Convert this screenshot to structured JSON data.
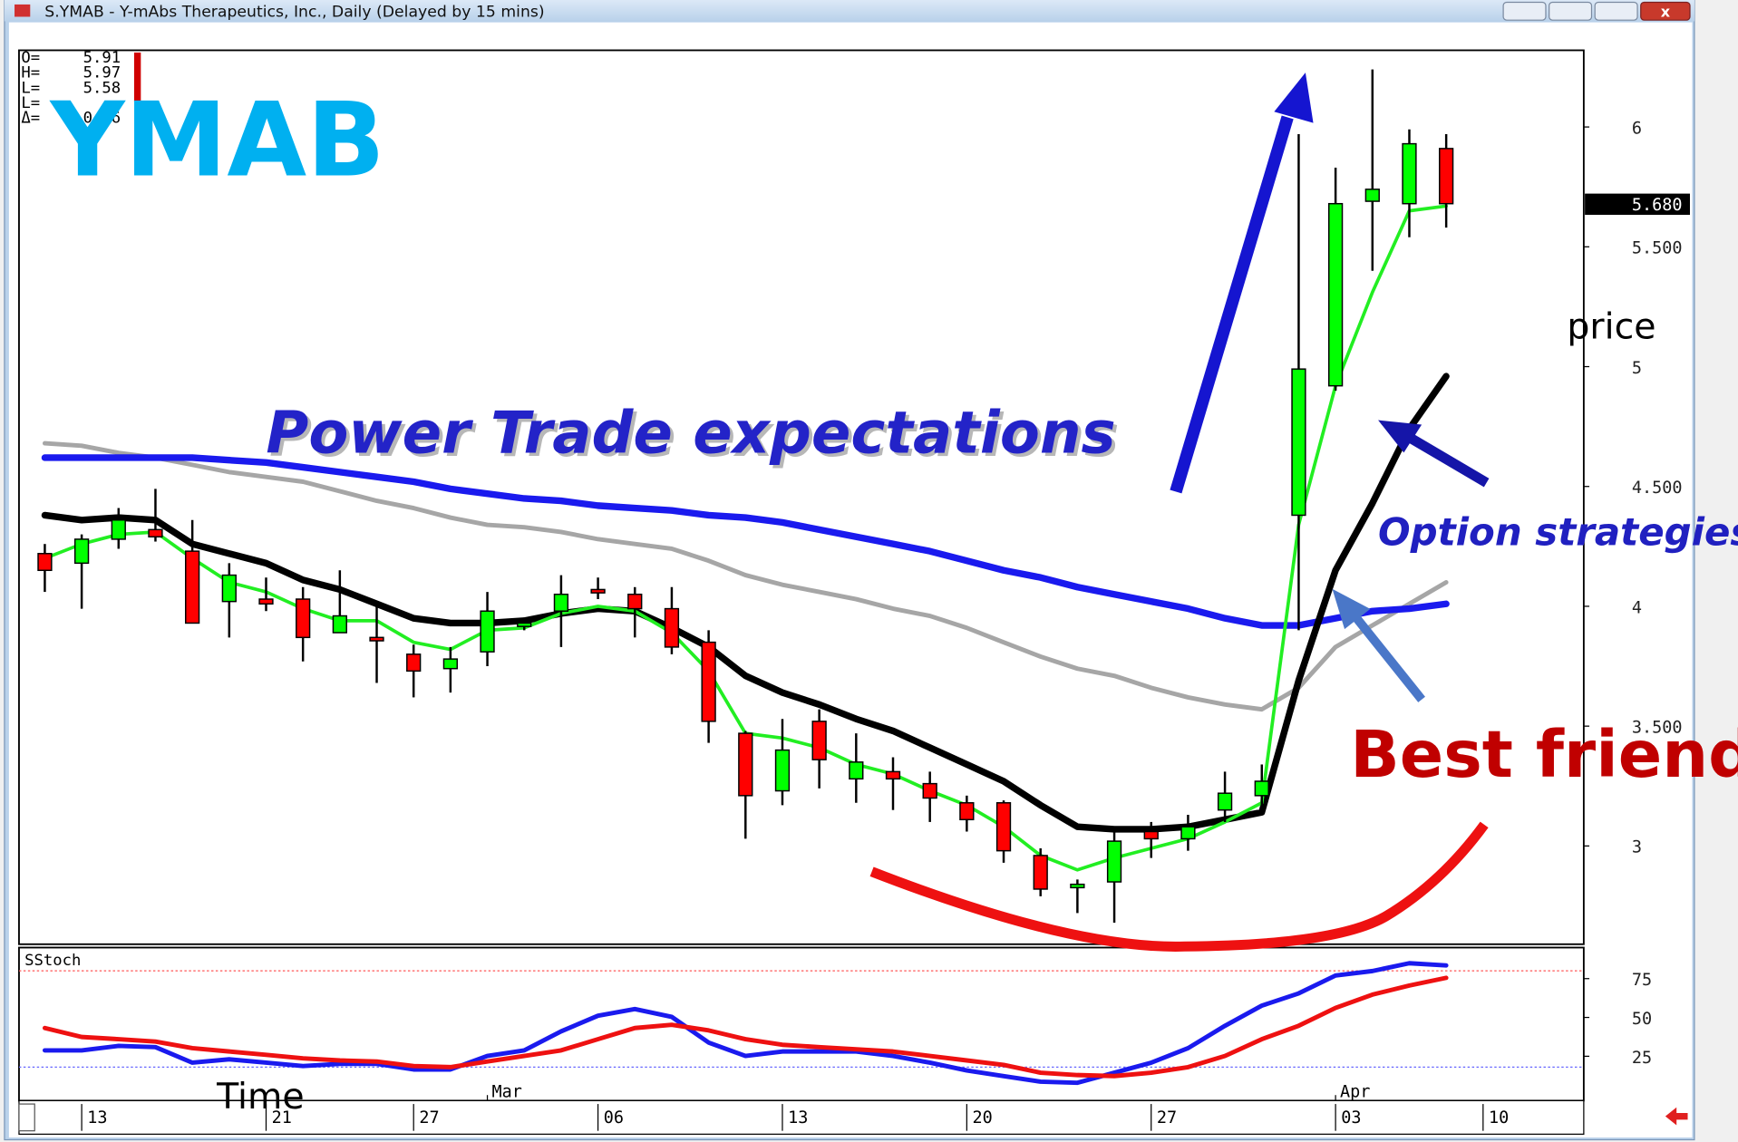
{
  "window_title": "S.YMAB - Y-mAbs Therapeutics, Inc., Daily (Delayed by 15 mins)",
  "ohlc_panel": [
    {
      "label": "O=",
      "value": "5.91"
    },
    {
      "label": "H=",
      "value": "5.97"
    },
    {
      "label": "L=",
      "value": "5.58"
    },
    {
      "label": "L="
    },
    {
      "label": "Δ=",
      "value": "-0.26"
    }
  ],
  "chart_data": [
    {
      "type": "candlestick",
      "annotations": [
        "YMAB",
        "Power Trade expectations",
        "Option strategies",
        "Best friend",
        "price",
        "Time"
      ],
      "x": [
        0,
        1,
        2,
        3,
        4,
        5,
        6,
        7,
        8,
        9,
        10,
        11,
        12,
        13,
        14,
        15,
        16,
        17,
        18,
        19,
        20,
        21,
        22,
        23,
        24,
        25,
        26,
        27,
        28,
        29,
        30,
        31,
        32,
        33,
        34,
        35,
        36,
        37,
        38
      ],
      "open": [
        4.22,
        4.18,
        4.28,
        4.32,
        4.23,
        4.02,
        4.03,
        4.03,
        3.89,
        3.87,
        3.8,
        3.74,
        3.81,
        3.92,
        3.98,
        4.07,
        4.05,
        3.99,
        3.85,
        3.47,
        3.23,
        3.52,
        3.28,
        3.31,
        3.26,
        3.18,
        3.18,
        2.96,
        2.83,
        2.85,
        3.06,
        3.03,
        3.15,
        3.21,
        4.38,
        4.92,
        5.69,
        5.68,
        5.91
      ],
      "high": [
        4.26,
        4.3,
        4.41,
        4.49,
        4.36,
        4.18,
        4.12,
        4.08,
        4.15,
        4.01,
        3.84,
        3.83,
        4.06,
        3.95,
        4.13,
        4.12,
        4.08,
        4.08,
        3.9,
        3.48,
        3.53,
        3.57,
        3.47,
        3.37,
        3.31,
        3.21,
        3.19,
        2.99,
        2.86,
        3.07,
        3.1,
        3.13,
        3.31,
        3.34,
        5.97,
        5.83,
        6.24,
        5.99,
        5.97
      ],
      "low": [
        4.06,
        3.99,
        4.24,
        4.27,
        3.93,
        3.87,
        3.98,
        3.77,
        3.89,
        3.68,
        3.62,
        3.64,
        3.75,
        3.9,
        3.83,
        4.03,
        3.87,
        3.8,
        3.43,
        3.03,
        3.17,
        3.24,
        3.18,
        3.15,
        3.1,
        3.06,
        2.93,
        2.79,
        2.72,
        2.68,
        2.95,
        2.98,
        3.1,
        3.14,
        3.9,
        4.9,
        5.4,
        5.54,
        5.58
      ],
      "close": [
        4.15,
        4.28,
        4.36,
        4.29,
        3.93,
        4.13,
        4.01,
        3.87,
        3.96,
        3.86,
        3.73,
        3.78,
        3.98,
        3.93,
        4.05,
        4.06,
        3.99,
        3.83,
        3.52,
        3.21,
        3.4,
        3.36,
        3.35,
        3.28,
        3.2,
        3.11,
        2.98,
        2.82,
        2.84,
        3.02,
        3.03,
        3.08,
        3.22,
        3.27,
        4.99,
        5.68,
        5.74,
        5.93,
        5.68
      ],
      "up_color": "#00ff00",
      "down_color": "#ff0000",
      "series": [
        {
          "color": "#a6a6a6",
          "width": 4,
          "values": [
            4.68,
            4.67,
            4.64,
            4.62,
            4.59,
            4.56,
            4.54,
            4.52,
            4.48,
            4.44,
            4.41,
            4.37,
            4.34,
            4.33,
            4.31,
            4.28,
            4.26,
            4.24,
            4.19,
            4.13,
            4.09,
            4.06,
            4.03,
            3.99,
            3.96,
            3.91,
            3.85,
            3.79,
            3.74,
            3.71,
            3.66,
            3.62,
            3.59,
            3.57,
            3.66,
            3.83,
            3.92,
            4.01,
            4.1
          ]
        },
        {
          "color": "#1a1aee",
          "width": 6,
          "values": [
            4.62,
            4.62,
            4.62,
            4.62,
            4.62,
            4.61,
            4.6,
            4.58,
            4.56,
            4.54,
            4.52,
            4.49,
            4.47,
            4.45,
            4.44,
            4.42,
            4.41,
            4.4,
            4.38,
            4.37,
            4.35,
            4.32,
            4.29,
            4.26,
            4.23,
            4.19,
            4.15,
            4.12,
            4.08,
            4.05,
            4.02,
            3.99,
            3.95,
            3.92,
            3.92,
            3.95,
            3.98,
            3.99,
            4.01
          ]
        },
        {
          "color": "#000000",
          "width": 6,
          "values": [
            4.38,
            4.36,
            4.37,
            4.36,
            4.26,
            4.22,
            4.18,
            4.11,
            4.07,
            4.01,
            3.95,
            3.93,
            3.93,
            3.94,
            3.97,
            3.99,
            3.98,
            3.91,
            3.83,
            3.71,
            3.64,
            3.59,
            3.53,
            3.48,
            3.41,
            3.34,
            3.27,
            3.17,
            3.08,
            3.07,
            3.07,
            3.08,
            3.11,
            3.14,
            3.69,
            4.15,
            4.43,
            4.74,
            4.96
          ]
        },
        {
          "color": "#22ee22",
          "width": 3,
          "values": [
            4.2,
            4.26,
            4.3,
            4.31,
            4.2,
            4.1,
            4.06,
            3.99,
            3.94,
            3.94,
            3.85,
            3.82,
            3.9,
            3.91,
            3.97,
            4.0,
            3.98,
            3.89,
            3.73,
            3.47,
            3.45,
            3.41,
            3.34,
            3.3,
            3.23,
            3.17,
            3.08,
            2.96,
            2.9,
            2.95,
            2.99,
            3.03,
            3.1,
            3.18,
            4.34,
            4.92,
            5.31,
            5.65,
            5.67
          ]
        }
      ],
      "xlim": [
        -0.7,
        41.73
      ],
      "ylim": [
        2.59,
        6.32
      ],
      "yticks": [
        3,
        {
          "value": 3.5,
          "label": "3.500"
        },
        4,
        {
          "value": 4.5,
          "label": "4.500"
        },
        5,
        {
          "value": 5.5,
          "label": "5.500"
        },
        6
      ],
      "xticks": [
        {
          "value": 1,
          "label": "13"
        },
        {
          "value": 6,
          "label": "21"
        },
        {
          "value": 10,
          "label": "27"
        },
        {
          "value": 15,
          "label": "06"
        },
        {
          "value": 20,
          "label": "13"
        },
        {
          "value": 25,
          "label": "20"
        },
        {
          "value": 30,
          "label": "27"
        },
        {
          "value": 35,
          "label": "03"
        },
        {
          "value": 39,
          "label": "10"
        }
      ],
      "month_ticks": [
        {
          "value": 12,
          "label": "Mar"
        },
        {
          "value": 35,
          "label": "Apr"
        }
      ],
      "last_price": {
        "value": 5.68,
        "label": "5.680"
      }
    },
    {
      "type": "line",
      "title": "SStoch",
      "x": [
        0,
        1,
        2,
        3,
        4,
        5,
        6,
        7,
        8,
        9,
        10,
        11,
        12,
        13,
        14,
        15,
        16,
        17,
        18,
        19,
        20,
        21,
        22,
        23,
        24,
        25,
        26,
        27,
        28,
        29,
        30,
        31,
        32,
        33,
        34,
        35,
        36,
        37,
        38
      ],
      "series": [
        {
          "color": "#1a1aee",
          "width": 4,
          "values": [
            28.8,
            28.8,
            31.7,
            30.9,
            20.9,
            23.0,
            20.9,
            18.7,
            20.1,
            20.1,
            16.5,
            16.5,
            25.2,
            28.8,
            41.0,
            51.1,
            55.4,
            50.4,
            33.8,
            25.2,
            28.1,
            28.1,
            28.1,
            25.2,
            20.9,
            15.8,
            12.2,
            8.6,
            7.9,
            14.4,
            20.9,
            30.2,
            44.6,
            57.6,
            65.5,
            77.0,
            79.9,
            84.9,
            83.5
          ]
        },
        {
          "color": "#ee1111",
          "width": 4,
          "values": [
            43.2,
            37.4,
            36.0,
            34.5,
            30.2,
            28.1,
            25.9,
            23.7,
            22.3,
            21.6,
            18.7,
            18.0,
            21.6,
            25.2,
            28.8,
            36.0,
            43.2,
            45.3,
            41.7,
            36.0,
            32.4,
            30.9,
            29.5,
            28.1,
            25.2,
            22.3,
            19.4,
            14.4,
            12.9,
            12.2,
            14.4,
            18.0,
            25.2,
            36.0,
            44.6,
            56.1,
            64.7,
            70.5,
            75.5
          ]
        }
      ],
      "reference_lines": [
        {
          "value": 80,
          "color": "#ff5555"
        },
        {
          "value": 18,
          "color": "#6666ff"
        }
      ],
      "xlim": [
        -0.7,
        41.73
      ],
      "ylim": [
        -3.6,
        95
      ],
      "yticks": [
        25,
        50,
        75
      ]
    }
  ]
}
